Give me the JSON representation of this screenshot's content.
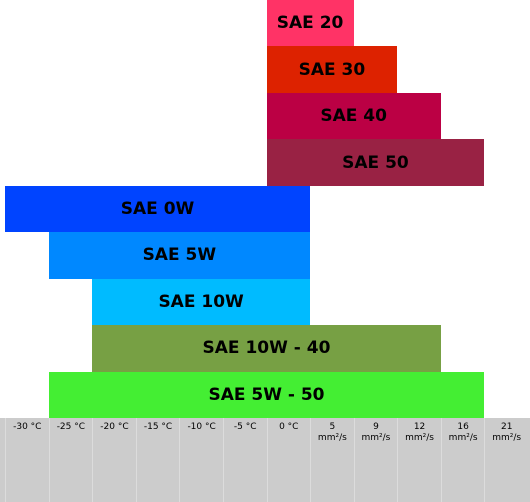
{
  "chart_data": {
    "type": "range-bar",
    "categories": [
      "-30 °C",
      "-25 °C",
      "-20 °C",
      "-15 °C",
      "-10 °C",
      "-5 °C",
      "0 °C",
      "5\nmm²/s",
      "9\nmm²/s",
      "12\nmm²/s",
      "16\nmm²/s",
      "21\nmm²/s"
    ],
    "series": [
      {
        "name": "SAE 20",
        "color": "#ff3366",
        "start": 6,
        "end": 7
      },
      {
        "name": "SAE 30",
        "color": "#dd2200",
        "start": 6,
        "end": 8
      },
      {
        "name": "SAE 40",
        "color": "#bb0044",
        "start": 6,
        "end": 9
      },
      {
        "name": "SAE 50",
        "color": "#992244",
        "start": 6,
        "end": 10
      },
      {
        "name": "SAE 0W",
        "color": "#0044ff",
        "start": 0,
        "end": 6
      },
      {
        "name": "SAE 5W",
        "color": "#0088ff",
        "start": 1,
        "end": 6
      },
      {
        "name": "SAE 10W",
        "color": "#00bbff",
        "start": 2,
        "end": 6
      },
      {
        "name": "SAE 10W - 40",
        "color": "#77a044",
        "start": 2,
        "end": 9
      },
      {
        "name": "SAE 5W - 50",
        "color": "#44ee33",
        "start": 1,
        "end": 10
      }
    ]
  }
}
